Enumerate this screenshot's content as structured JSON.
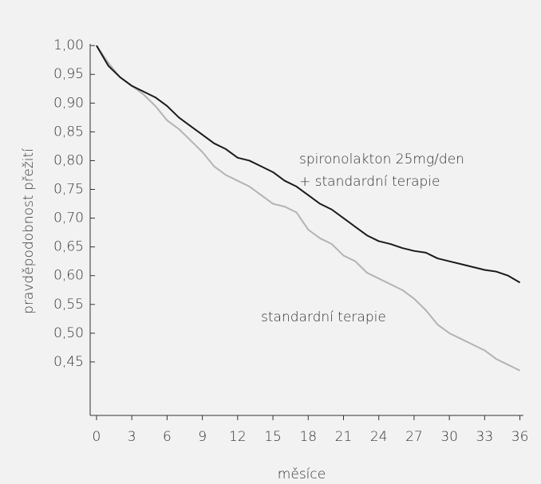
{
  "chart_data": {
    "type": "line",
    "x_label": "měsíce",
    "y_label": "pravděpodobnost přežití",
    "x": [
      0,
      1,
      2,
      3,
      4,
      5,
      6,
      7,
      8,
      9,
      10,
      11,
      12,
      13,
      14,
      15,
      16,
      17,
      18,
      19,
      20,
      21,
      22,
      23,
      24,
      25,
      26,
      27,
      28,
      29,
      30,
      31,
      32,
      33,
      34,
      35,
      36
    ],
    "series": [
      {
        "color": "#1a1a1a",
        "values": [
          1.0,
          0.965,
          0.945,
          0.93,
          0.92,
          0.91,
          0.895,
          0.875,
          0.86,
          0.845,
          0.83,
          0.82,
          0.805,
          0.8,
          0.79,
          0.78,
          0.765,
          0.755,
          0.74,
          0.725,
          0.715,
          0.7,
          0.685,
          0.67,
          0.66,
          0.655,
          0.648,
          0.643,
          0.64,
          0.63,
          0.625,
          0.62,
          0.615,
          0.61,
          0.607,
          0.6,
          0.588
        ]
      },
      {
        "color": "#b3b3b3",
        "values": [
          1.0,
          0.97,
          0.945,
          0.93,
          0.915,
          0.895,
          0.87,
          0.855,
          0.835,
          0.815,
          0.79,
          0.775,
          0.765,
          0.755,
          0.74,
          0.725,
          0.72,
          0.71,
          0.68,
          0.665,
          0.655,
          0.635,
          0.625,
          0.605,
          0.595,
          0.585,
          0.575,
          0.56,
          0.54,
          0.515,
          0.5,
          0.49,
          0.48,
          0.47,
          0.455,
          0.445,
          0.435
        ]
      }
    ],
    "annotations": [
      "spironolakton 25mg/den",
      "+ standardní terapie",
      "standardní terapie"
    ],
    "xlim": [
      -0.54,
      36.3
    ],
    "ylim": [
      0.357,
      1.003
    ],
    "xticks": [
      0,
      3,
      6,
      9,
      12,
      15,
      18,
      21,
      24,
      27,
      30,
      33,
      36
    ],
    "yticks": [
      {
        "value": 1.0,
        "label": "1,00"
      },
      {
        "value": 0.95,
        "label": "0,95"
      },
      {
        "value": 0.9,
        "label": "0,90"
      },
      {
        "value": 0.85,
        "label": "0,85"
      },
      {
        "value": 0.8,
        "label": "0,80"
      },
      {
        "value": 0.75,
        "label": "0,75"
      },
      {
        "value": 0.7,
        "label": "0,70"
      },
      {
        "value": 0.65,
        "label": "0,65"
      },
      {
        "value": 0.6,
        "label": "0,60"
      },
      {
        "value": 0.55,
        "label": "0,55"
      },
      {
        "value": 0.5,
        "label": "0,50"
      },
      {
        "value": 0.45,
        "label": "0,45"
      }
    ]
  }
}
